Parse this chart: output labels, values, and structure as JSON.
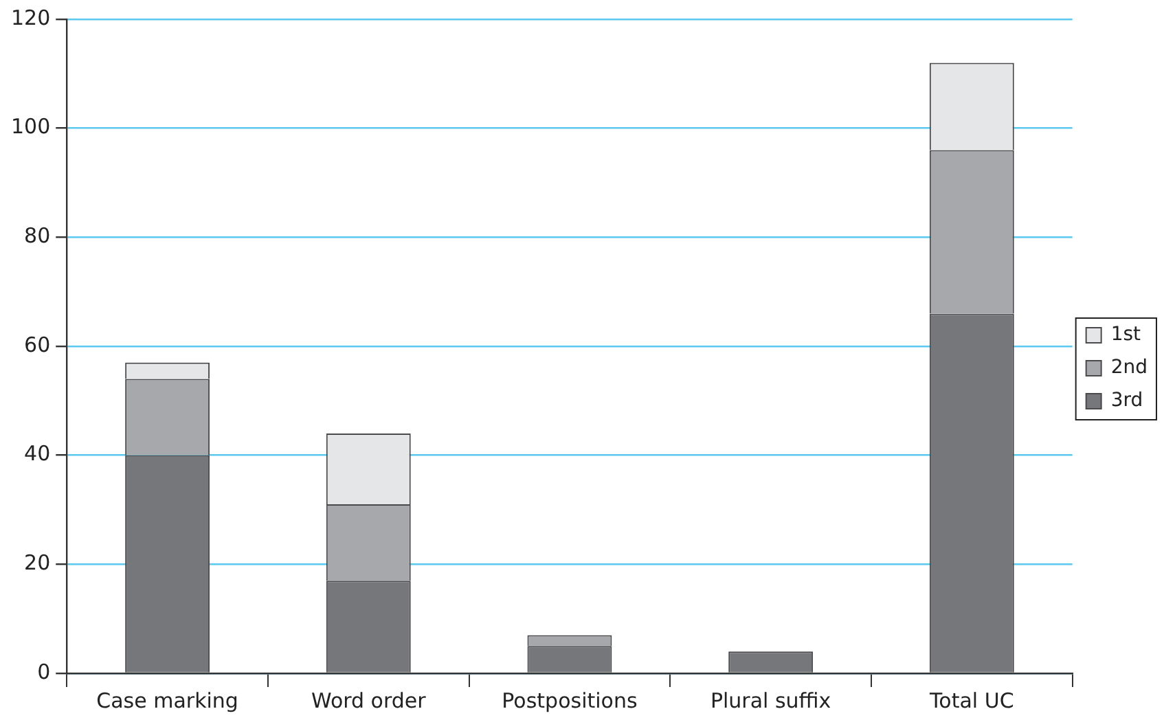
{
  "chart_data": {
    "type": "bar",
    "stacked": true,
    "categories": [
      "Case marking",
      "Word order",
      "Postpositions",
      "Plural suffix",
      "Total UC"
    ],
    "series": [
      {
        "name": "3rd",
        "color": "#76777b",
        "values": [
          40,
          17,
          5,
          4,
          66
        ]
      },
      {
        "name": "2nd",
        "color": "#a7a8ab",
        "values": [
          14,
          14,
          2,
          0,
          30
        ]
      },
      {
        "name": "1st",
        "color": "#e5e6e8",
        "values": [
          3,
          13,
          0,
          0,
          16
        ]
      }
    ],
    "ylim": [
      0,
      120
    ],
    "yticks": [
      0,
      20,
      40,
      60,
      80,
      100,
      120
    ],
    "grid": "y",
    "legend": "right"
  }
}
